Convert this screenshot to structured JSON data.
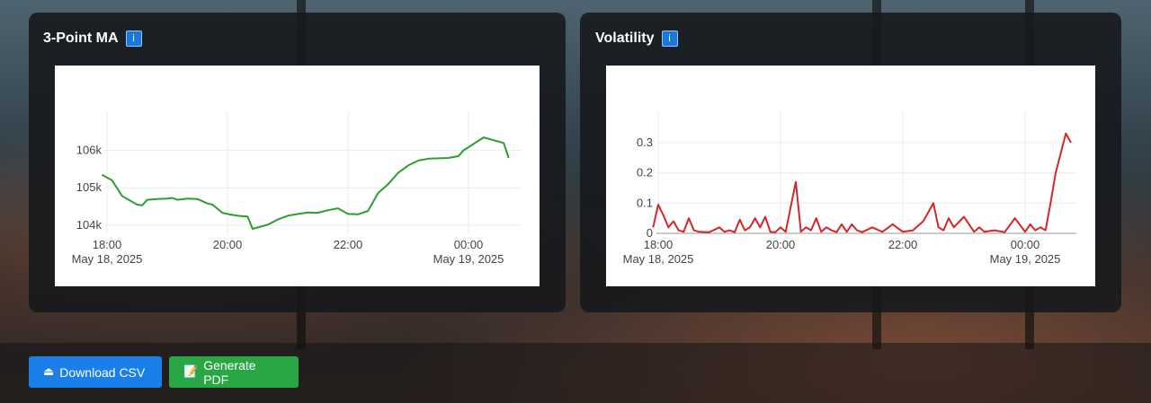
{
  "cards": {
    "ma": {
      "title": "3-Point MA",
      "info_icon": "i"
    },
    "vol": {
      "title": "Volatility",
      "info_icon": "i"
    }
  },
  "buttons": {
    "csv": {
      "label": "Download CSV",
      "icon": "download-icon"
    },
    "pdf": {
      "label": "Generate PDF",
      "icon": "document-icon"
    }
  },
  "colors": {
    "ma_line": "#2ca02c",
    "vol_line": "#d62728",
    "csv_button": "#1a7fe8",
    "pdf_button": "#2aa745"
  },
  "chart_data": [
    {
      "type": "line",
      "name": "3-Point MA",
      "x_ticks": [
        "18:00",
        "20:00",
        "22:00",
        "00:00"
      ],
      "x_tick_dates": [
        "May 18, 2025",
        "",
        "",
        "May 19, 2025"
      ],
      "y_ticks": [
        "104k",
        "105k",
        "106k"
      ],
      "ylim": [
        103900,
        106400
      ],
      "grid": true,
      "x": [
        "17:55",
        "18:05",
        "18:15",
        "18:30",
        "18:35",
        "18:40",
        "18:50",
        "19:00",
        "19:05",
        "19:10",
        "19:20",
        "19:30",
        "19:40",
        "19:45",
        "19:55",
        "20:00",
        "20:10",
        "20:20",
        "20:25",
        "20:40",
        "20:50",
        "21:00",
        "21:10",
        "21:20",
        "21:30",
        "21:40",
        "21:50",
        "22:00",
        "22:10",
        "22:20",
        "22:30",
        "22:40",
        "22:50",
        "23:00",
        "23:10",
        "23:20",
        "23:30",
        "23:40",
        "23:50",
        "23:55",
        "00:15",
        "00:35",
        "00:40"
      ],
      "y": [
        105350,
        105200,
        104780,
        104550,
        104530,
        104680,
        104700,
        104710,
        104730,
        104680,
        104710,
        104700,
        104580,
        104550,
        104330,
        104300,
        104250,
        104230,
        103900,
        104010,
        104150,
        104250,
        104300,
        104340,
        104330,
        104400,
        104450,
        104300,
        104290,
        104380,
        104860,
        105100,
        105400,
        105600,
        105730,
        105780,
        105790,
        105800,
        105850,
        106000,
        106350,
        106200,
        105800
      ]
    },
    {
      "type": "line",
      "name": "Volatility",
      "x_ticks": [
        "18:00",
        "20:00",
        "22:00",
        "00:00"
      ],
      "x_tick_dates": [
        "May 18, 2025",
        "",
        "",
        "May 19, 2025"
      ],
      "y_ticks": [
        "0",
        "0.1",
        "0.2",
        "0.3"
      ],
      "ylim": [
        0,
        0.35
      ],
      "grid": true,
      "x": [
        "17:55",
        "18:00",
        "18:05",
        "18:10",
        "18:15",
        "18:20",
        "18:25",
        "18:30",
        "18:35",
        "18:40",
        "18:50",
        "19:00",
        "19:05",
        "19:10",
        "19:15",
        "19:20",
        "19:25",
        "19:30",
        "19:35",
        "19:40",
        "19:45",
        "19:50",
        "19:55",
        "20:00",
        "20:05",
        "20:15",
        "20:20",
        "20:25",
        "20:30",
        "20:35",
        "20:40",
        "20:45",
        "20:50",
        "20:55",
        "21:00",
        "21:05",
        "21:10",
        "21:15",
        "21:20",
        "21:30",
        "21:40",
        "21:50",
        "22:00",
        "22:10",
        "22:20",
        "22:30",
        "22:35",
        "22:40",
        "22:45",
        "22:50",
        "23:00",
        "23:05",
        "23:10",
        "23:15",
        "23:20",
        "23:30",
        "23:40",
        "23:50",
        "00:00",
        "00:05",
        "00:10",
        "00:15",
        "00:20",
        "00:25",
        "00:30",
        "00:40",
        "00:45"
      ],
      "y": [
        0.02,
        0.095,
        0.06,
        0.02,
        0.04,
        0.01,
        0.005,
        0.05,
        0.01,
        0.005,
        0.004,
        0.02,
        0.005,
        0.01,
        0.004,
        0.045,
        0.01,
        0.02,
        0.05,
        0.02,
        0.055,
        0.005,
        0.004,
        0.02,
        0.005,
        0.17,
        0.005,
        0.02,
        0.01,
        0.05,
        0.005,
        0.02,
        0.01,
        0.004,
        0.03,
        0.005,
        0.03,
        0.01,
        0.004,
        0.02,
        0.005,
        0.03,
        0.005,
        0.01,
        0.04,
        0.1,
        0.02,
        0.01,
        0.05,
        0.02,
        0.055,
        0.03,
        0.005,
        0.02,
        0.005,
        0.01,
        0.004,
        0.05,
        0.005,
        0.03,
        0.01,
        0.02,
        0.01,
        0.1,
        0.2,
        0.33,
        0.3
      ]
    }
  ]
}
